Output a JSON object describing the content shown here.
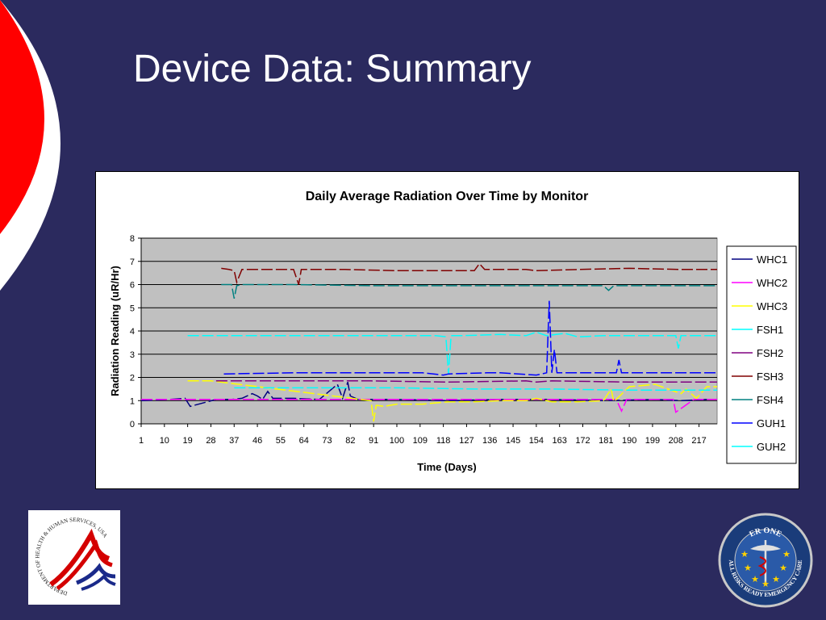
{
  "slide": {
    "title": "Device Data: Summary"
  },
  "logos": {
    "left_text": "DEPARTMENT OF HEALTH & HUMAN SERVICES, USA",
    "right_top": "ER ONE",
    "right_ring": "ALL RISKS READY EMERGENCY CARE"
  },
  "colors": {
    "background": "#2b2a5e",
    "accent_red": "#ff0000",
    "plot_bg": "#c0c0c0"
  },
  "chart_data": {
    "type": "line",
    "title": "Daily Average Radiation Over Time by Monitor",
    "xlabel": "Time (Days)",
    "ylabel": "Radiation Reading (uR/Hr)",
    "ylim": [
      0,
      8
    ],
    "yticks": [
      0,
      1,
      2,
      3,
      4,
      5,
      6,
      7,
      8
    ],
    "xlim": [
      1,
      224
    ],
    "xticks": [
      1,
      10,
      19,
      28,
      37,
      46,
      55,
      64,
      73,
      82,
      91,
      100,
      109,
      118,
      127,
      136,
      145,
      154,
      163,
      172,
      181,
      190,
      199,
      208,
      217
    ],
    "grid": "horizontal",
    "legend": "right",
    "series": [
      {
        "name": "WHC1",
        "color": "#000080",
        "x": [
          1,
          12,
          18,
          20,
          30,
          36,
          40,
          44,
          46,
          48,
          50,
          52,
          60,
          70,
          77,
          79,
          81,
          82,
          85,
          100,
          120,
          140,
          160,
          180,
          200,
          210,
          220,
          224
        ],
        "y": [
          1.0,
          1.05,
          1.1,
          0.75,
          1.05,
          1.05,
          1.1,
          1.3,
          1.2,
          1.05,
          1.4,
          1.1,
          1.1,
          1.05,
          1.7,
          1.1,
          1.8,
          1.2,
          1.05,
          1.05,
          1.0,
          1.05,
          1.05,
          1.0,
          1.05,
          1.0,
          1.05,
          1.05
        ]
      },
      {
        "name": "WHC2",
        "color": "#ff00ff",
        "x": [
          1,
          20,
          40,
          60,
          80,
          100,
          130,
          160,
          185,
          187,
          189,
          200,
          207,
          208,
          215,
          224
        ],
        "y": [
          1.05,
          1.05,
          1.05,
          1.05,
          1.05,
          1.05,
          1.05,
          1.05,
          1.05,
          0.55,
          1.05,
          1.05,
          1.05,
          0.5,
          1.05,
          1.05
        ]
      },
      {
        "name": "WHC3",
        "color": "#ffff00",
        "x": [
          19,
          28,
          90,
          91,
          92,
          95,
          100,
          110,
          120,
          130,
          140,
          150,
          154,
          160,
          170,
          180,
          183,
          184,
          190,
          200,
          210,
          212,
          216,
          220,
          224
        ],
        "y": [
          1.85,
          1.85,
          1.0,
          0.1,
          0.8,
          0.75,
          0.85,
          0.85,
          0.95,
          0.95,
          1.0,
          1.0,
          1.1,
          0.95,
          0.95,
          1.0,
          1.5,
          0.95,
          1.6,
          1.7,
          1.3,
          1.5,
          1.1,
          1.6,
          1.6
        ]
      },
      {
        "name": "FSH1",
        "color": "#00ffff",
        "x": [
          19,
          40,
          60,
          80,
          100,
          115,
          119,
          120,
          121,
          125,
          140,
          150,
          154,
          158,
          165,
          170,
          180,
          185,
          200,
          208,
          209,
          210,
          224
        ],
        "y": [
          3.8,
          3.8,
          3.8,
          3.8,
          3.8,
          3.8,
          3.75,
          2.15,
          3.8,
          3.8,
          3.85,
          3.8,
          3.95,
          3.8,
          3.9,
          3.75,
          3.8,
          3.8,
          3.8,
          3.8,
          3.25,
          3.8,
          3.8
        ]
      },
      {
        "name": "FSH2",
        "color": "#800080",
        "x": [
          30,
          60,
          90,
          120,
          150,
          154,
          160,
          190,
          224
        ],
        "y": [
          1.85,
          1.85,
          1.85,
          1.8,
          1.85,
          1.8,
          1.85,
          1.8,
          1.8
        ]
      },
      {
        "name": "FSH3",
        "color": "#800000",
        "x": [
          32,
          35,
          37,
          38,
          40,
          60,
          62,
          63,
          80,
          100,
          130,
          132,
          134,
          150,
          154,
          170,
          190,
          210,
          224
        ],
        "y": [
          6.7,
          6.65,
          6.6,
          6.1,
          6.65,
          6.65,
          6.0,
          6.65,
          6.65,
          6.6,
          6.6,
          6.9,
          6.65,
          6.65,
          6.6,
          6.65,
          6.7,
          6.65,
          6.65
        ]
      },
      {
        "name": "FSH4",
        "color": "#008080",
        "x": [
          32,
          36,
          37,
          38,
          40,
          60,
          90,
          120,
          150,
          180,
          182,
          184,
          200,
          224
        ],
        "y": [
          6.0,
          6.0,
          5.4,
          5.95,
          6.0,
          6.0,
          5.95,
          5.95,
          5.95,
          5.95,
          5.75,
          5.95,
          5.95,
          5.95
        ]
      },
      {
        "name": "GUH1",
        "color": "#0000ff",
        "x": [
          33,
          60,
          90,
          110,
          118,
          120,
          135,
          140,
          154,
          158,
          159,
          160,
          161,
          162,
          163,
          164,
          170,
          185,
          186,
          187,
          200,
          224
        ],
        "y": [
          2.15,
          2.2,
          2.2,
          2.2,
          2.1,
          2.15,
          2.2,
          2.2,
          2.1,
          2.2,
          5.3,
          2.2,
          3.2,
          2.2,
          2.2,
          2.2,
          2.2,
          2.2,
          2.75,
          2.2,
          2.2,
          2.2
        ]
      },
      {
        "name": "GUH2",
        "color": "#00ffff",
        "x": [
          37,
          70,
          100,
          130,
          160,
          190,
          220,
          224
        ],
        "y": [
          1.55,
          1.55,
          1.55,
          1.5,
          1.5,
          1.45,
          1.45,
          1.45
        ]
      }
    ]
  }
}
